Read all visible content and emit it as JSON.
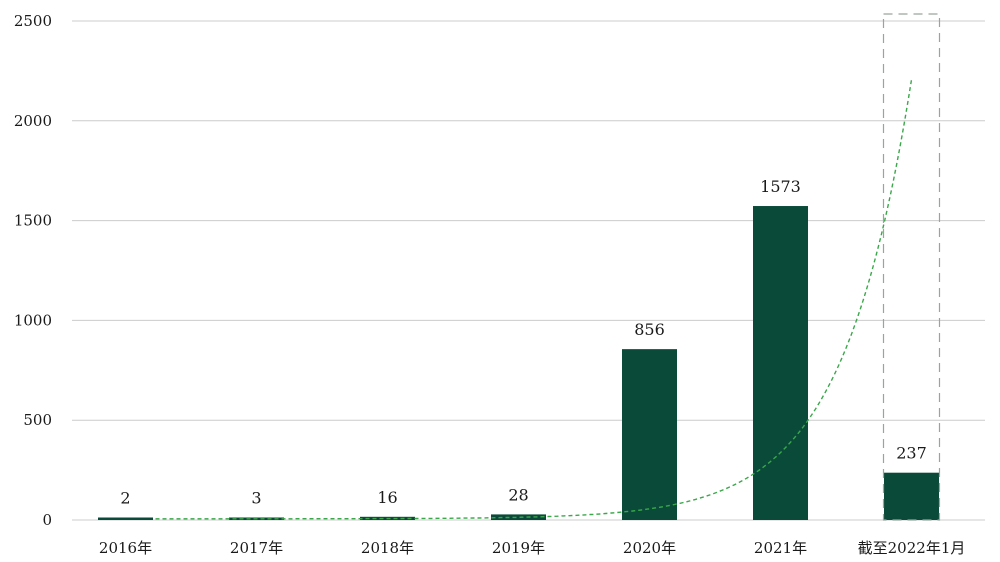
{
  "chart_data": {
    "type": "bar",
    "categories": [
      "2016年",
      "2017年",
      "2018年",
      "2019年",
      "2020年",
      "2021年",
      "截至2022年1月"
    ],
    "values": [
      2,
      3,
      16,
      28,
      856,
      1573,
      237
    ],
    "data_labels": [
      "2",
      "3",
      "16",
      "28",
      "856",
      "1573",
      "237"
    ],
    "y_ticks": [
      0,
      500,
      1000,
      1500,
      2000,
      2500
    ],
    "ylim": [
      0,
      2500
    ],
    "title": "",
    "xlabel": "",
    "ylabel": "",
    "grid": true,
    "bar_color": "#0a4a38",
    "trend_color": "#3aa84a",
    "gridline_color": "#cccccc",
    "highlight_box_color": "#9aa39c",
    "highlighted_category": "截至2022年1月",
    "trend_line": "dashed exponential curve"
  }
}
